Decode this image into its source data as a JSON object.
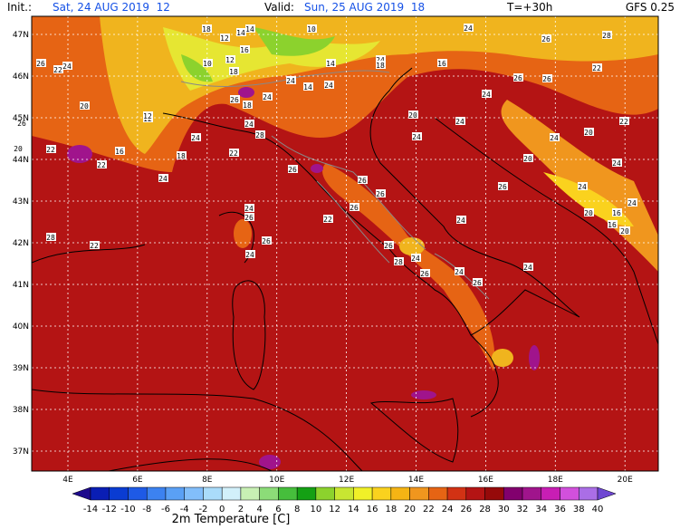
{
  "header": {
    "init_label": "Init.:",
    "init_value": "Sat, 24 AUG 2019  12",
    "valid_label": "Valid:",
    "valid_value": "Sun, 25 AUG 2019  18",
    "lead": "T=+30h",
    "model": "GFS 0.25"
  },
  "axes": {
    "lon": [
      "4E",
      "6E",
      "8E",
      "10E",
      "12E",
      "14E",
      "16E",
      "18E",
      "20E"
    ],
    "lat": [
      "47N",
      "46N",
      "45N",
      "44N",
      "43N",
      "42N",
      "41N",
      "40N",
      "39N",
      "38N",
      "37N"
    ]
  },
  "map_labels": [
    "18",
    "14",
    "12",
    "14",
    "10",
    "24",
    "28",
    "26",
    "22",
    "24",
    "10",
    "12",
    "16",
    "18",
    "14",
    "16",
    "12",
    "24",
    "18",
    "24",
    "20",
    "12",
    "26",
    "26",
    "26",
    "22",
    "26",
    "20",
    "22",
    "24",
    "24",
    "22",
    "16",
    "18",
    "26",
    "24",
    "24",
    "14",
    "18",
    "24",
    "24",
    "20",
    "24",
    "24",
    "24",
    "20",
    "22",
    "20",
    "24",
    "26",
    "24",
    "24",
    "20",
    "16",
    "16",
    "24",
    "22",
    "28",
    "26",
    "22",
    "24",
    "26",
    "26",
    "24",
    "28",
    "22",
    "26",
    "26",
    "26",
    "24",
    "26",
    "24",
    "28",
    "26",
    "24",
    "26",
    "24",
    "20"
  ],
  "colorbar": {
    "title": "2m Temperature [C]",
    "labels": [
      -14,
      -12,
      -10,
      -8,
      -6,
      -4,
      -2,
      0,
      2,
      4,
      6,
      8,
      10,
      12,
      14,
      16,
      18,
      20,
      22,
      24,
      26,
      28,
      30,
      32,
      34,
      36,
      38,
      40
    ],
    "colors": [
      "#1e0a8c",
      "#0a1eb4",
      "#0a3cd2",
      "#1e5ae6",
      "#3c82f0",
      "#5aa0f5",
      "#82befa",
      "#aadcfa",
      "#d2f0fa",
      "#c8f0b4",
      "#8cdc78",
      "#46be3c",
      "#14a014",
      "#8cd22d",
      "#c8e632",
      "#f0f028",
      "#fad21e",
      "#f5b414",
      "#f0961e",
      "#e66414",
      "#d23214",
      "#b41414",
      "#960a0a",
      "#82006e",
      "#a0148c",
      "#c81eb4",
      "#d250dc",
      "#aa6ee6",
      "#6e46d2"
    ]
  }
}
